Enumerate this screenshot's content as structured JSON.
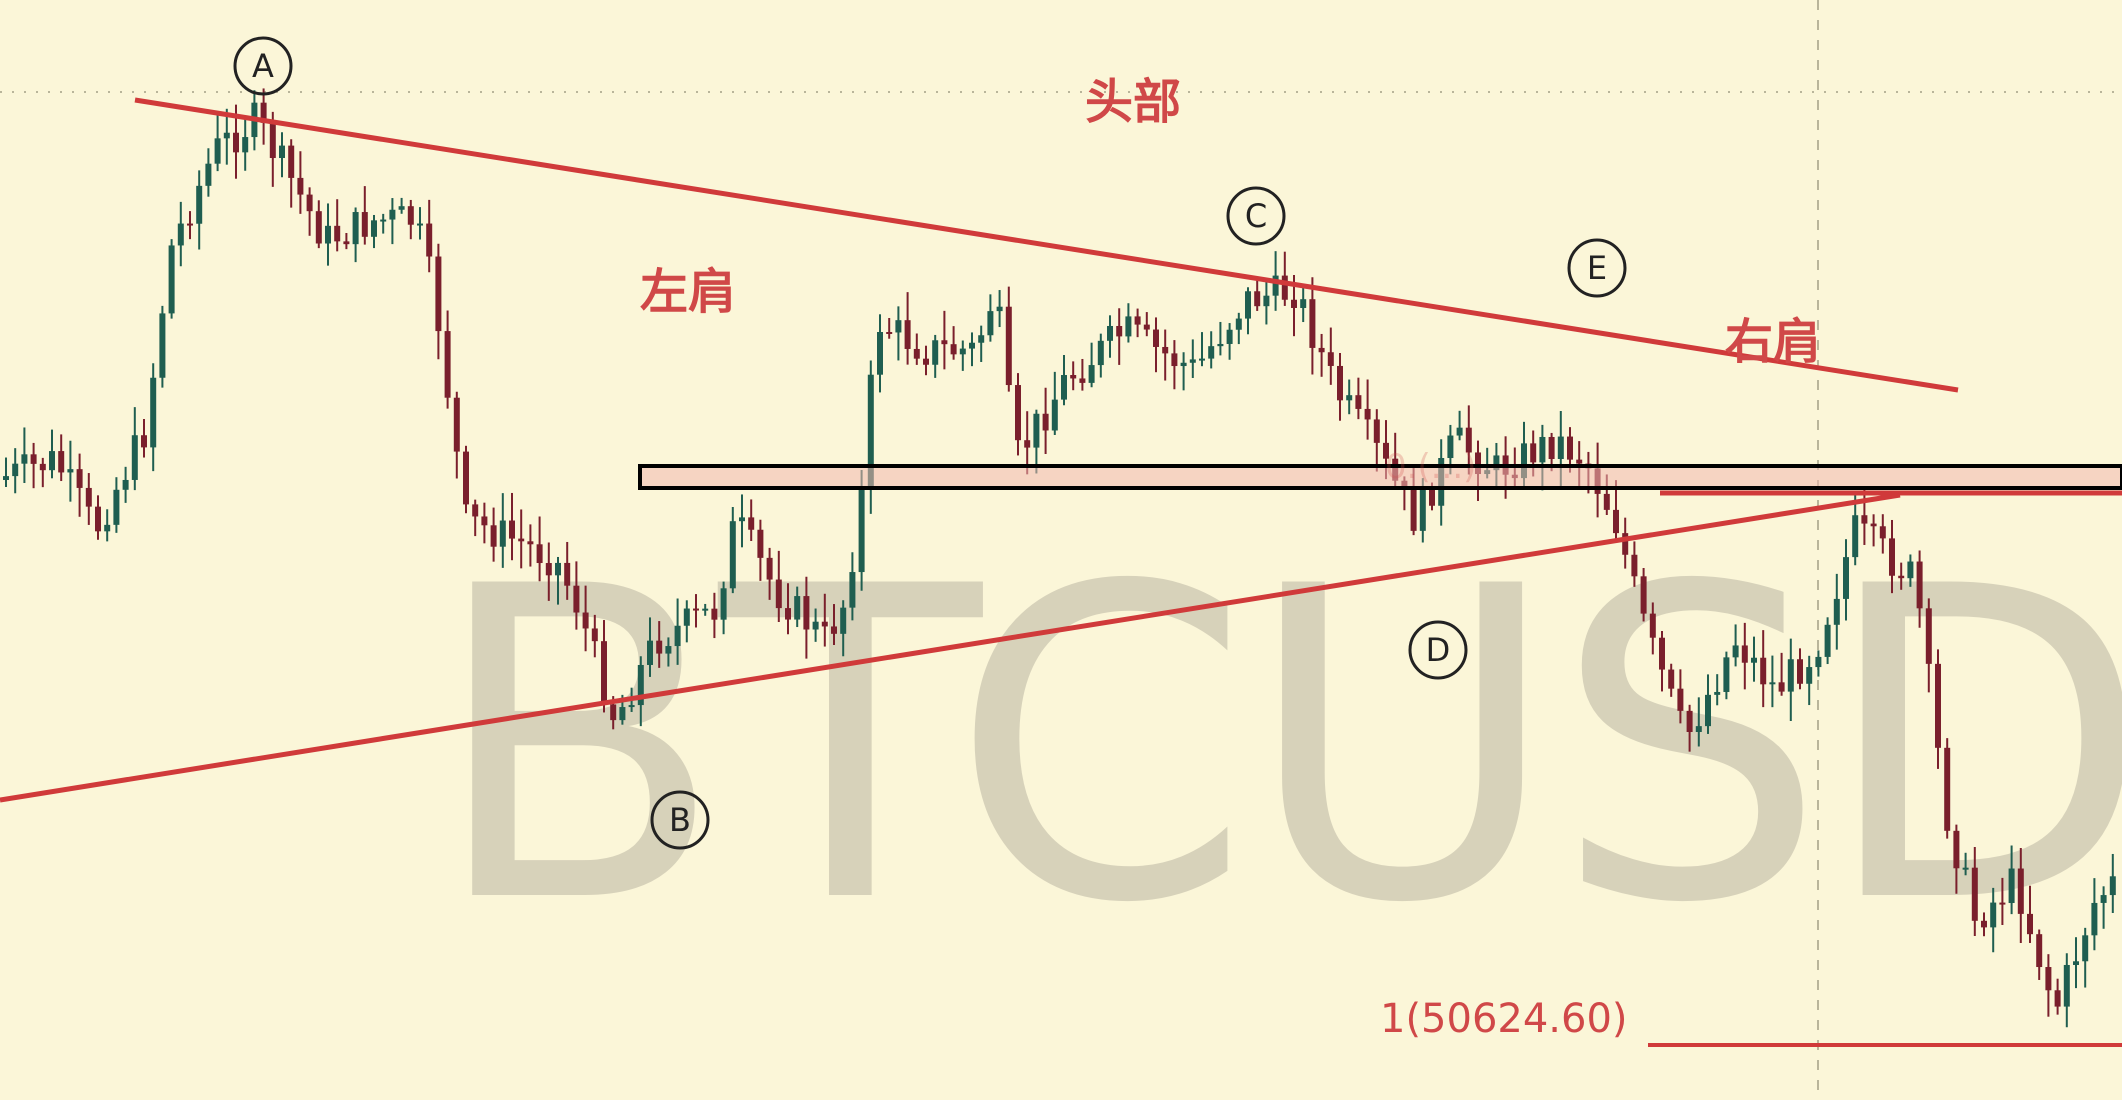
{
  "chart_data": {
    "type": "candlestick",
    "symbol_watermark": "BTCUSDT",
    "colors": {
      "background": "#fbf6d8",
      "bull": "#1f5e50",
      "bear": "#7a1f2c",
      "trendline": "#d03a3a",
      "zone_border": "#000000",
      "zone_fill": "#f3b8b0",
      "gridline": "#b9b59a"
    },
    "pattern_labels": {
      "head": "头部",
      "left_shoulder": "左肩",
      "right_shoulder": "右肩"
    },
    "wave_labels": [
      "A",
      "B",
      "C",
      "D",
      "E"
    ],
    "level_label": "1(50624.60)",
    "faint_level_text": "0.(...)"
  }
}
